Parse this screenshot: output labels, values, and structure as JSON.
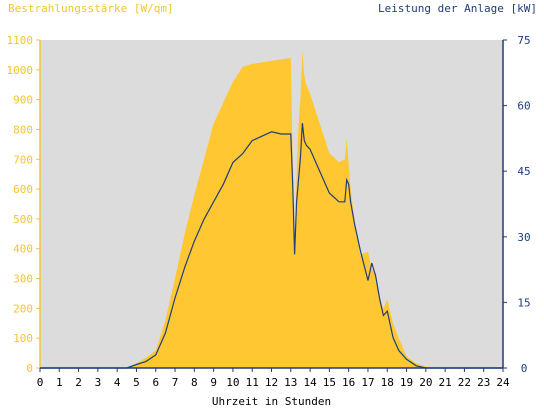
{
  "chart_data": {
    "type": "area",
    "left_axis_label": "Bestrahlungsstärke [W/qm]",
    "right_axis_label": "Leistung der Anlage [kW]",
    "xlabel": "Uhrzeit in Stunden",
    "x_ticks": [
      "0",
      "1",
      "2",
      "3",
      "4",
      "5",
      "6",
      "7",
      "8",
      "9",
      "10",
      "11",
      "12",
      "13",
      "14",
      "15",
      "16",
      "17",
      "18",
      "19",
      "20",
      "21",
      "22",
      "23",
      "24"
    ],
    "left_ticks": [
      "0",
      "100",
      "200",
      "300",
      "400",
      "500",
      "600",
      "700",
      "800",
      "900",
      "1000",
      "1100"
    ],
    "right_ticks": [
      "0",
      "15",
      "30",
      "45",
      "60",
      "75"
    ],
    "xlim": [
      0,
      24
    ],
    "left_ylim": [
      0,
      1100
    ],
    "right_ylim": [
      0,
      75
    ],
    "colors": {
      "irradiance_fill": "#ffc832",
      "left_axis": "#f5c431",
      "right_axis": "#1f3d7a",
      "power_line": "#1f3d7a",
      "plot_background": "#dcdcdc"
    },
    "series": [
      {
        "axis": "left",
        "style": "area",
        "x": [
          0,
          4.5,
          5,
          5.5,
          6,
          6.5,
          7,
          7.5,
          8,
          8.5,
          9,
          9.5,
          10,
          10.5,
          11,
          11.5,
          12,
          12.5,
          13,
          13.1,
          13.2,
          13.3,
          13.4,
          13.5,
          13.6,
          13.7,
          13.8,
          14,
          14.5,
          15,
          15.5,
          15.8,
          15.9,
          16,
          16.1,
          16.3,
          16.6,
          17,
          17.2,
          17.4,
          17.6,
          17.8,
          18,
          18.3,
          18.6,
          19,
          19.5,
          20,
          20.5,
          21,
          24
        ],
        "values": [
          0,
          0,
          15,
          35,
          60,
          160,
          300,
          450,
          580,
          700,
          820,
          890,
          960,
          1010,
          1020,
          1025,
          1030,
          1035,
          1040,
          700,
          390,
          650,
          820,
          900,
          1065,
          980,
          950,
          920,
          820,
          720,
          690,
          700,
          770,
          680,
          600,
          500,
          380,
          390,
          330,
          320,
          230,
          200,
          230,
          150,
          100,
          40,
          15,
          5,
          0,
          0,
          0
        ]
      },
      {
        "axis": "right",
        "style": "line",
        "x": [
          0,
          4.5,
          5,
          5.5,
          6,
          6.5,
          7,
          7.5,
          8,
          8.5,
          9,
          9.5,
          10,
          10.5,
          11,
          11.5,
          12,
          12.5,
          13,
          13.1,
          13.2,
          13.3,
          13.4,
          13.5,
          13.6,
          13.7,
          13.8,
          14,
          14.5,
          15,
          15.5,
          15.8,
          15.9,
          16,
          16.1,
          16.3,
          16.6,
          17,
          17.2,
          17.4,
          17.6,
          17.8,
          18,
          18.3,
          18.6,
          19,
          19.5,
          20,
          20.5,
          21,
          24
        ],
        "values": [
          0,
          0,
          0.8,
          1.5,
          3,
          8,
          16,
          23,
          29,
          34,
          38,
          42,
          47,
          49,
          52,
          53,
          54,
          53.5,
          53.5,
          42,
          26,
          38,
          43,
          48,
          56,
          52,
          51,
          50,
          45,
          40,
          38,
          38,
          43,
          42,
          38,
          33,
          27,
          20,
          24,
          21,
          16,
          12,
          13,
          7,
          4,
          2,
          0.5,
          0,
          0,
          0,
          0
        ]
      }
    ]
  }
}
